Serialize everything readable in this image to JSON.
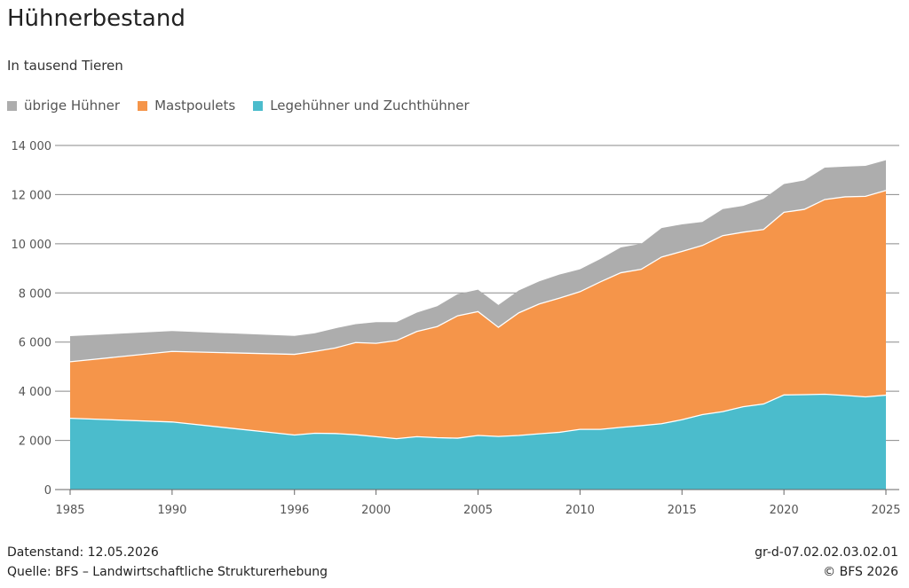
{
  "title": "Hühnerbestand",
  "subtitle": "In tausend Tieren",
  "legend": [
    {
      "label": "übrige Hühner",
      "color": "#adadad"
    },
    {
      "label": "Mastpoulets",
      "color": "#f5954a"
    },
    {
      "label": "Legehühner und Zuchthühner",
      "color": "#4bbccc"
    }
  ],
  "footer": {
    "datenstand": "Datenstand: 12.05.2026",
    "quelle": "Quelle: BFS – Landwirtschaftliche Strukturerhebung",
    "code": "gr-d-07.02.02.03.02.01",
    "copyright": "© BFS 2026"
  },
  "chart_data": {
    "type": "area",
    "stacked": true,
    "title": "Hühnerbestand",
    "subtitle": "In tausend Tieren",
    "x": [
      1985,
      1990,
      1996,
      1997,
      1998,
      1999,
      2000,
      2001,
      2002,
      2003,
      2004,
      2005,
      2006,
      2007,
      2008,
      2009,
      2010,
      2011,
      2012,
      2013,
      2014,
      2015,
      2016,
      2017,
      2018,
      2019,
      2020,
      2021,
      2022,
      2023,
      2024,
      2025
    ],
    "series": [
      {
        "name": "Legehühner und Zuchthühner",
        "color": "#4bbccc",
        "values": [
          2900,
          2750,
          2220,
          2290,
          2280,
          2230,
          2150,
          2070,
          2150,
          2110,
          2090,
          2200,
          2160,
          2200,
          2270,
          2330,
          2450,
          2450,
          2530,
          2600,
          2680,
          2840,
          3050,
          3170,
          3370,
          3480,
          3850,
          3860,
          3880,
          3830,
          3770,
          3840
        ]
      },
      {
        "name": "Mastpoulets",
        "color": "#f5954a",
        "values": [
          2300,
          2870,
          3280,
          3330,
          3480,
          3750,
          3800,
          3990,
          4280,
          4520,
          4980,
          5040,
          4440,
          4990,
          5280,
          5460,
          5600,
          6000,
          6290,
          6360,
          6780,
          6850,
          6880,
          7160,
          7100,
          7100,
          7430,
          7540,
          7920,
          8080,
          8160,
          8330
        ]
      },
      {
        "name": "übrige Hühner",
        "color": "#adadad",
        "values": [
          1040,
          830,
          750,
          740,
          800,
          750,
          860,
          750,
          770,
          830,
          880,
          890,
          910,
          910,
          920,
          960,
          910,
          930,
          1030,
          1040,
          1180,
          1100,
          960,
          1080,
          1070,
          1250,
          1150,
          1180,
          1300,
          1230,
          1240,
          1230
        ]
      }
    ],
    "ylim": [
      0,
      14000
    ],
    "yticks": [
      0,
      2000,
      4000,
      6000,
      8000,
      10000,
      12000,
      14000
    ],
    "ytick_labels": [
      "0",
      "2 000",
      "4 000",
      "6 000",
      "8 000",
      "10 000",
      "12 000",
      "14 000"
    ],
    "xticks": [
      1985,
      1990,
      1996,
      2000,
      2005,
      2010,
      2015,
      2020,
      2025
    ],
    "xlim": [
      1985,
      2025
    ],
    "grid": true,
    "legend_position": "top-left"
  }
}
